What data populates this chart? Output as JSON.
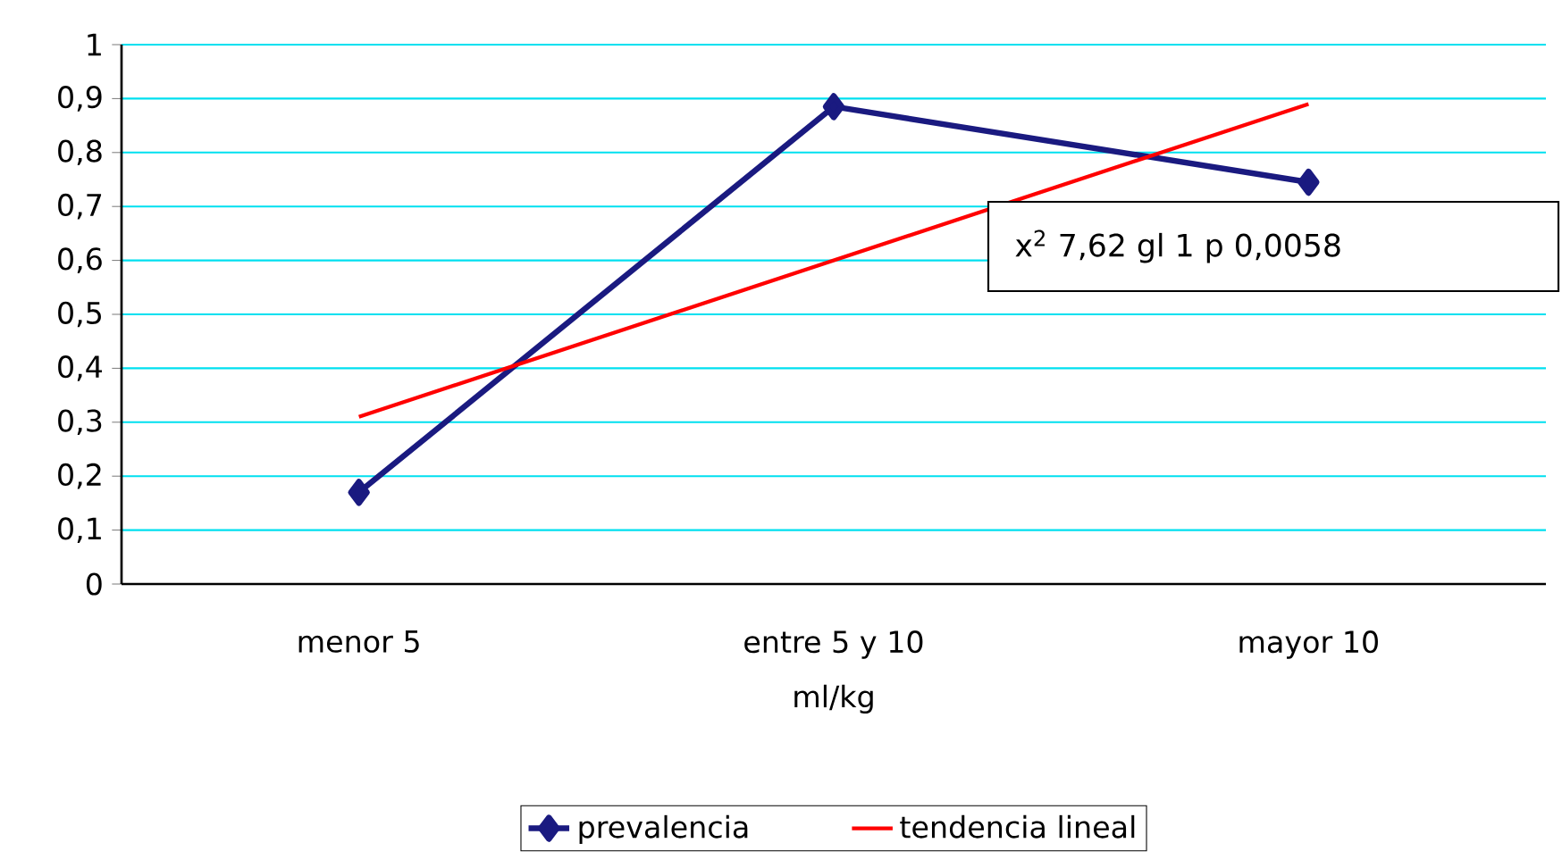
{
  "chart_data": {
    "type": "line",
    "xlabel": "ml/kg",
    "categories": [
      "menor 5",
      "entre 5 y 10",
      "mayor 10"
    ],
    "series": [
      {
        "name": "prevalencia",
        "color": "#1a1a80",
        "values": [
          0.17,
          0.885,
          0.745
        ],
        "marker": "diamond",
        "line_style": "solid"
      },
      {
        "name": "tendencia lineal",
        "color": "#ff0000",
        "values": [
          0.31,
          0.6,
          0.89
        ],
        "marker": "none",
        "line_style": "solid"
      }
    ],
    "ylim": [
      0,
      1
    ],
    "yticks": [
      0,
      {
        "value": 0.1,
        "label": "0,1"
      },
      {
        "value": 0.2,
        "label": "0,2"
      },
      {
        "value": 0.3,
        "label": "0,3"
      },
      {
        "value": 0.4,
        "label": "0,4"
      },
      {
        "value": 0.5,
        "label": "0,5"
      },
      {
        "value": 0.6,
        "label": "0,6"
      },
      {
        "value": 0.7,
        "label": "0,7"
      },
      {
        "value": 0.8,
        "label": "0,8"
      },
      {
        "value": 0.9,
        "label": "0,9"
      },
      1
    ],
    "grid": "y",
    "legend": "bottom",
    "annotations": [
      "x$^{2}$ 7,62  gl 1  p 0,0058"
    ]
  }
}
